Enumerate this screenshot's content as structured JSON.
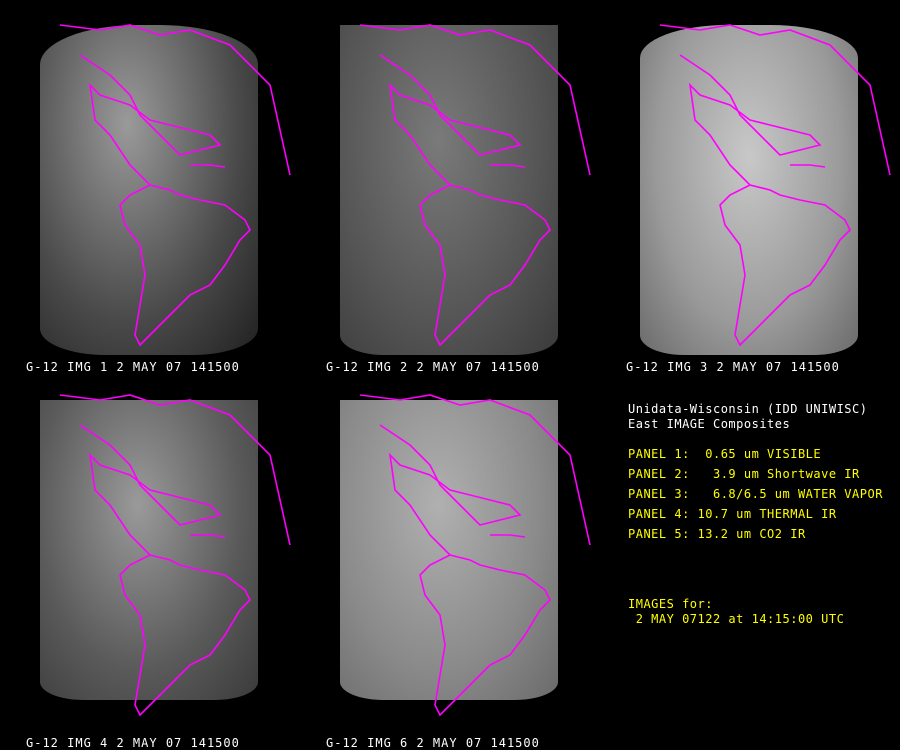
{
  "panels": [
    {
      "label": "G-12 IMG 1 2 MAY 07 141500"
    },
    {
      "label": "G-12 IMG 2 2 MAY 07 141500"
    },
    {
      "label": "G-12 IMG 3 2 MAY 07 141500"
    },
    {
      "label": "G-12 IMG 4 2 MAY 07 141500"
    },
    {
      "label": "G-12 IMG 6 2 MAY 07 141500"
    }
  ],
  "info": {
    "title1": "Unidata-Wisconsin (IDD UNIWISC)",
    "title2": "East IMAGE Composites",
    "bands": [
      "PANEL 1:  0.65 um VISIBLE",
      "PANEL 2:   3.9 um Shortwave IR",
      "PANEL 3:   6.8/6.5 um WATER VAPOR",
      "PANEL 4: 10.7 um THERMAL IR",
      "PANEL 5: 13.2 um CO2 IR"
    ],
    "images_for": "IMAGES for:",
    "datetime": " 2 MAY 07122 at 14:15:00 UTC"
  },
  "colors": {
    "coastline": "#ff00ff",
    "info_title": "#ffffff",
    "info_text": "#ffff00",
    "background": "#000000"
  }
}
